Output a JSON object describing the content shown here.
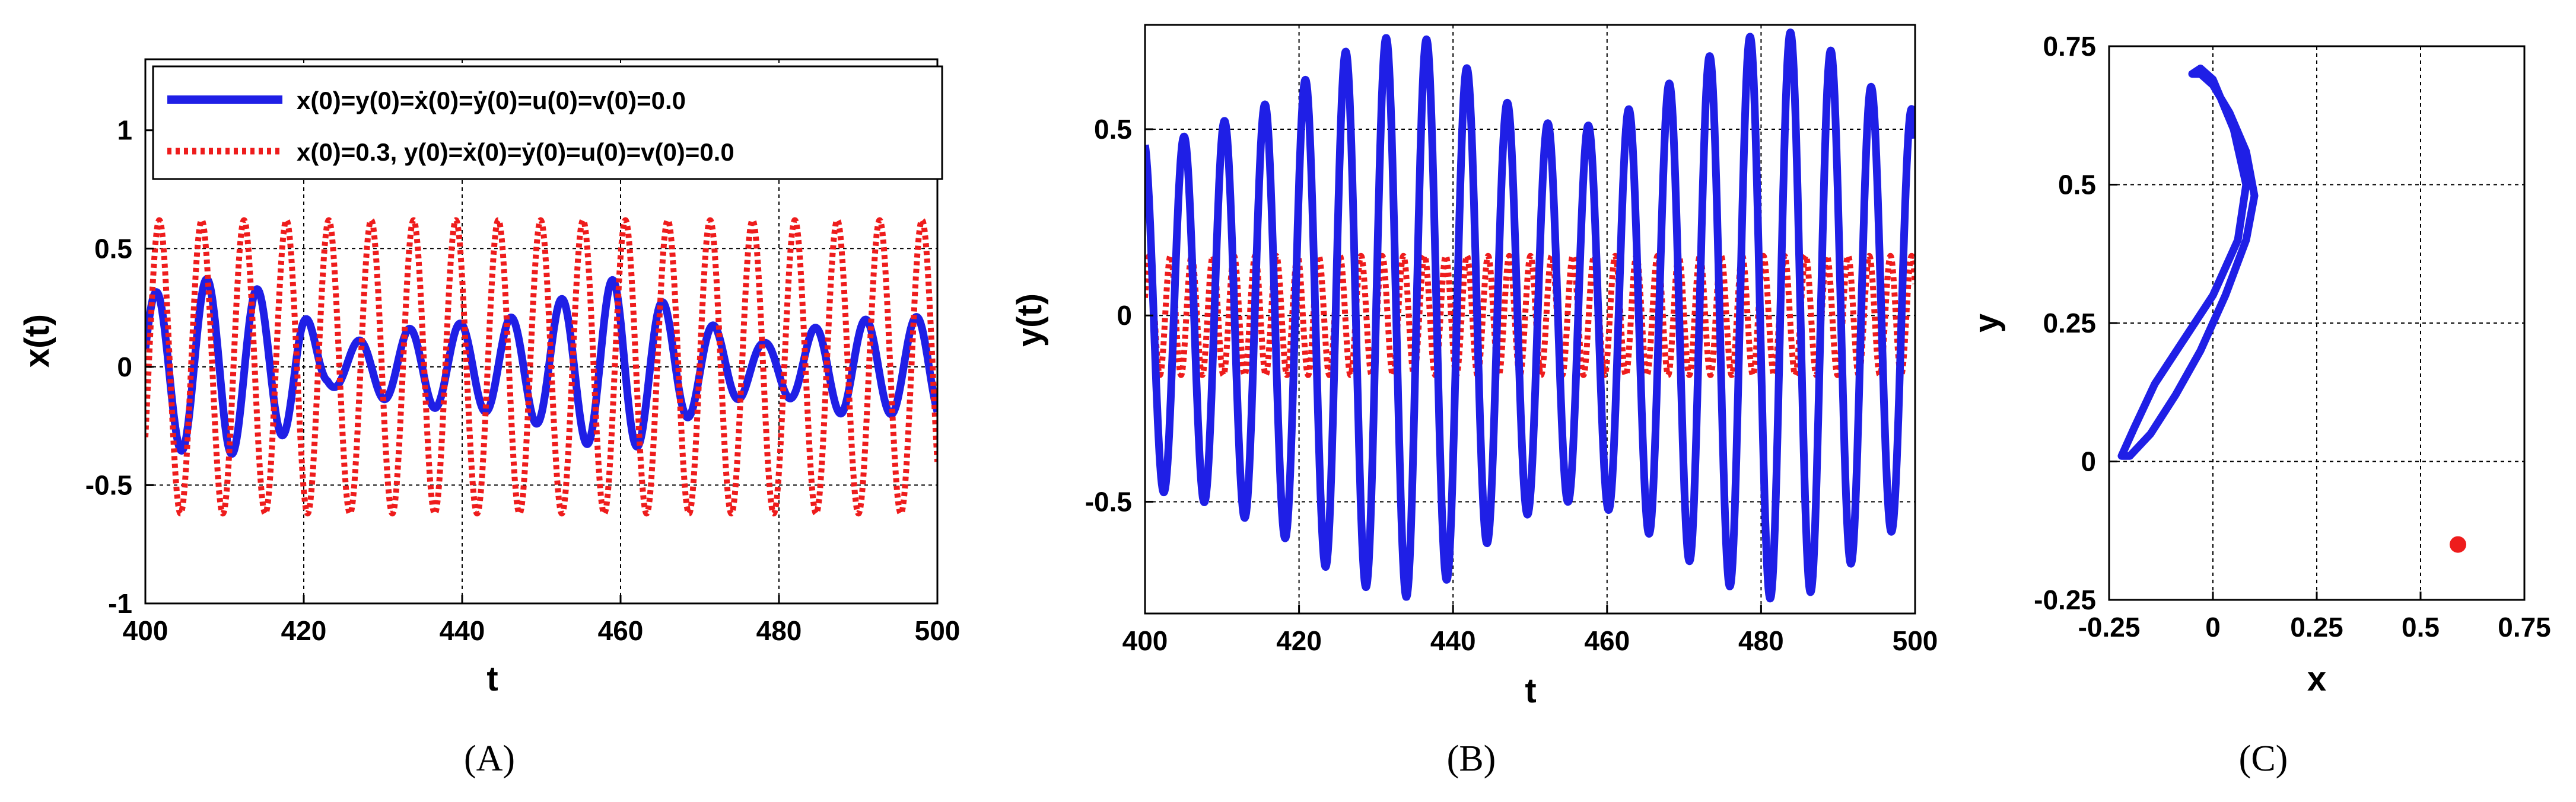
{
  "chart_data": [
    {
      "type": "line",
      "panel_label": "(A)",
      "xlabel": "t",
      "ylabel": "x(t)",
      "xlim": [
        400,
        500
      ],
      "ylim": [
        -1,
        1.3
      ],
      "grid": true,
      "xticks": [
        400,
        420,
        440,
        460,
        480,
        500
      ],
      "xtick_labels": [
        "400",
        "420",
        "440",
        "460",
        "480",
        "500"
      ],
      "yticks": [
        -1,
        -0.5,
        0,
        0.5,
        1
      ],
      "ytick_labels": [
        "-1",
        "-0.5",
        "0",
        "0.5",
        "1"
      ],
      "legend_position": "top-right",
      "series": [
        {
          "name": "x(0)=y(0)=ẋ(0)=ẏ(0)=u(0)=v(0)=0.0",
          "color": "#1f1fe6",
          "style": "solid",
          "period": 6.4,
          "phase": 0.25,
          "amplitude": [
            [
              400,
              0.3
            ],
            [
              405,
              0.36
            ],
            [
              410,
              0.38
            ],
            [
              414,
              0.33
            ],
            [
              419,
              0.27
            ],
            [
              423,
              0.08
            ],
            [
              428,
              0.12
            ],
            [
              433,
              0.16
            ],
            [
              438,
              0.18
            ],
            [
              443,
              0.19
            ],
            [
              448,
              0.22
            ],
            [
              452,
              0.28
            ],
            [
              456,
              0.33
            ],
            [
              460,
              0.38
            ],
            [
              464,
              0.3
            ],
            [
              468,
              0.22
            ],
            [
              473,
              0.16
            ],
            [
              478,
              0.1
            ],
            [
              483,
              0.15
            ],
            [
              488,
              0.2
            ],
            [
              494,
              0.2
            ],
            [
              500,
              0.22
            ]
          ]
        },
        {
          "name": "x(0)=0.3, y(0)=ẋ(0)=ẏ(0)=u(0)=v(0)=0.0",
          "color": "#ee1c1c",
          "style": "dotted",
          "period": 5.35,
          "phase": -0.5,
          "amplitude": [
            [
              400,
              0.62
            ],
            [
              500,
              0.62
            ]
          ]
        }
      ]
    },
    {
      "type": "line",
      "panel_label": "(B)",
      "xlabel": "t",
      "ylabel": "y(t)",
      "xlim": [
        400,
        500
      ],
      "ylim": [
        -0.8,
        0.78
      ],
      "grid": true,
      "xticks": [
        400,
        420,
        440,
        460,
        480,
        500
      ],
      "xtick_labels": [
        "400",
        "420",
        "440",
        "460",
        "480",
        "500"
      ],
      "yticks": [
        -0.5,
        0,
        0.5
      ],
      "ytick_labels": [
        "-0.5",
        "0",
        "0.5"
      ],
      "series": [
        {
          "name": "x(0)=y(0)=ẋ(0)=ẏ(0)=u(0)=v(0)=0.0",
          "color": "#1f1fe6",
          "style": "solid",
          "period": 5.25,
          "phase": 1.8,
          "amplitude": [
            [
              400,
              0.47
            ],
            [
              405,
              0.48
            ],
            [
              410,
              0.52
            ],
            [
              415,
              0.56
            ],
            [
              420,
              0.62
            ],
            [
              425,
              0.7
            ],
            [
              430,
              0.74
            ],
            [
              435,
              0.76
            ],
            [
              440,
              0.7
            ],
            [
              445,
              0.6
            ],
            [
              450,
              0.53
            ],
            [
              455,
              0.5
            ],
            [
              460,
              0.52
            ],
            [
              465,
              0.58
            ],
            [
              470,
              0.65
            ],
            [
              475,
              0.72
            ],
            [
              480,
              0.76
            ],
            [
              485,
              0.76
            ],
            [
              490,
              0.7
            ],
            [
              495,
              0.6
            ],
            [
              500,
              0.55
            ]
          ]
        },
        {
          "name": "x(0)=0.3, y(0)=ẋ(0)=ẏ(0)=u(0)=v(0)=0.0",
          "color": "#ee1c1c",
          "style": "dotted",
          "period": 2.75,
          "phase": 0.3,
          "amplitude": [
            [
              400,
              0.16
            ],
            [
              500,
              0.16
            ]
          ]
        }
      ]
    },
    {
      "type": "scatter",
      "panel_label": "(C)",
      "xlabel": "x",
      "ylabel": "y",
      "xlim": [
        -0.25,
        0.75
      ],
      "ylim": [
        -0.25,
        0.75
      ],
      "grid": true,
      "xticks": [
        -0.25,
        0,
        0.25,
        0.5,
        0.75
      ],
      "xtick_labels": [
        "-0.25",
        "0",
        "0.25",
        "0.5",
        "0.75"
      ],
      "yticks": [
        -0.25,
        0,
        0.25,
        0.5,
        0.75
      ],
      "ytick_labels": [
        "-0.25",
        "0",
        "0.25",
        "0.5",
        "0.75"
      ],
      "series": [
        {
          "name": "x(0)=y(0)=ẋ(0)=ẏ(0)=u(0)=v(0)=0.0",
          "color": "#1f1fe6",
          "style": "closed-curve",
          "points": [
            [
              -0.03,
              0.71
            ],
            [
              0.0,
              0.69
            ],
            [
              0.05,
              0.6
            ],
            [
              0.08,
              0.5
            ],
            [
              0.06,
              0.4
            ],
            [
              0.0,
              0.3
            ],
            [
              -0.07,
              0.22
            ],
            [
              -0.14,
              0.14
            ],
            [
              -0.19,
              0.06
            ],
            [
              -0.22,
              0.01
            ],
            [
              -0.2,
              0.01
            ],
            [
              -0.15,
              0.05
            ],
            [
              -0.09,
              0.12
            ],
            [
              -0.03,
              0.2
            ],
            [
              0.03,
              0.3
            ],
            [
              0.08,
              0.4
            ],
            [
              0.1,
              0.48
            ],
            [
              0.08,
              0.56
            ],
            [
              0.04,
              0.63
            ],
            [
              0.0,
              0.68
            ],
            [
              -0.03,
              0.7
            ],
            [
              -0.05,
              0.7
            ],
            [
              -0.03,
              0.71
            ]
          ]
        },
        {
          "name": "x(0)=0.3, y(0)=ẋ(0)=ẏ(0)=u(0)=v(0)=0.0",
          "color": "#ee1c1c",
          "style": "point",
          "points": [
            [
              0.59,
              -0.15
            ]
          ]
        }
      ]
    }
  ]
}
